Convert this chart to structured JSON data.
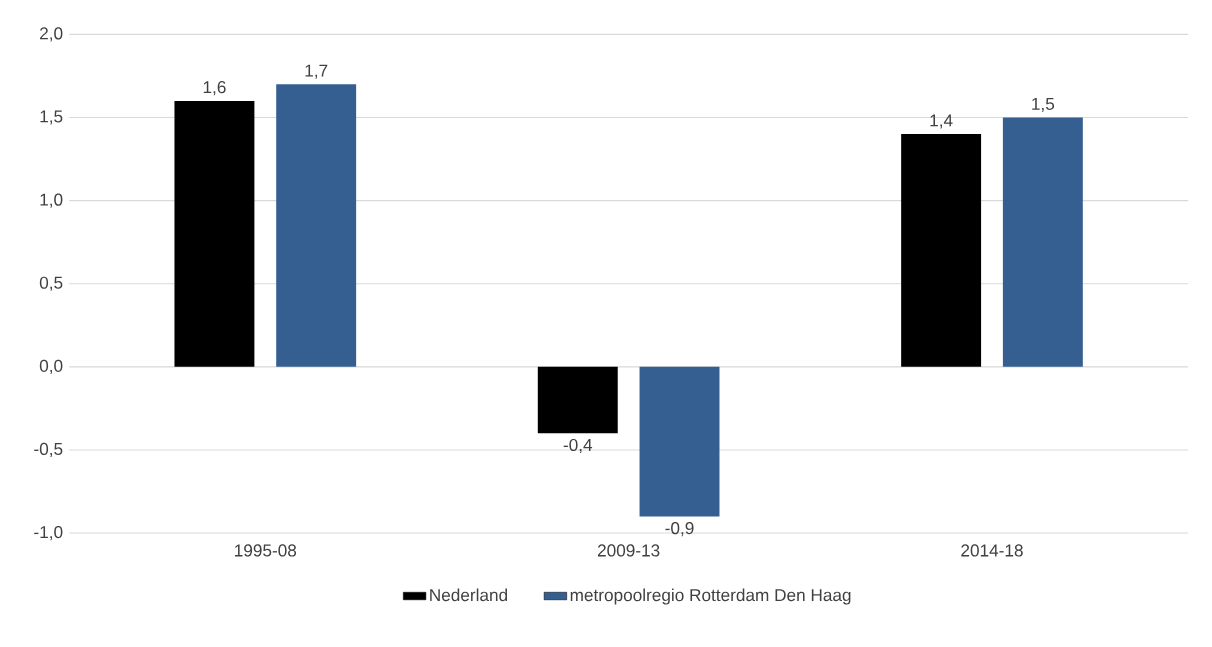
{
  "chart_data": {
    "type": "bar",
    "categories": [
      "1995-08",
      "2009-13",
      "2014-18"
    ],
    "series": [
      {
        "name": "Nederland",
        "color": "#000000",
        "values": [
          1.6,
          -0.4,
          1.4
        ],
        "value_labels": [
          "1,6",
          "-0,4",
          "1,4"
        ]
      },
      {
        "name": "metropoolregio Rotterdam Den Haag",
        "color": "#355f91",
        "values": [
          1.7,
          -0.9,
          1.5
        ],
        "value_labels": [
          "1,7",
          "-0,9",
          "1,5"
        ]
      }
    ],
    "ylim": [
      -1.0,
      2.0
    ],
    "yticks": [
      {
        "value": -1.0,
        "label": "-1,0"
      },
      {
        "value": -0.5,
        "label": "-0,5"
      },
      {
        "value": 0.0,
        "label": "0,0"
      },
      {
        "value": 0.5,
        "label": "0,5"
      },
      {
        "value": 1.0,
        "label": "1,0"
      },
      {
        "value": 1.5,
        "label": "1,5"
      },
      {
        "value": 2.0,
        "label": "2,0"
      }
    ],
    "grid": "y",
    "legend": "bottom"
  }
}
